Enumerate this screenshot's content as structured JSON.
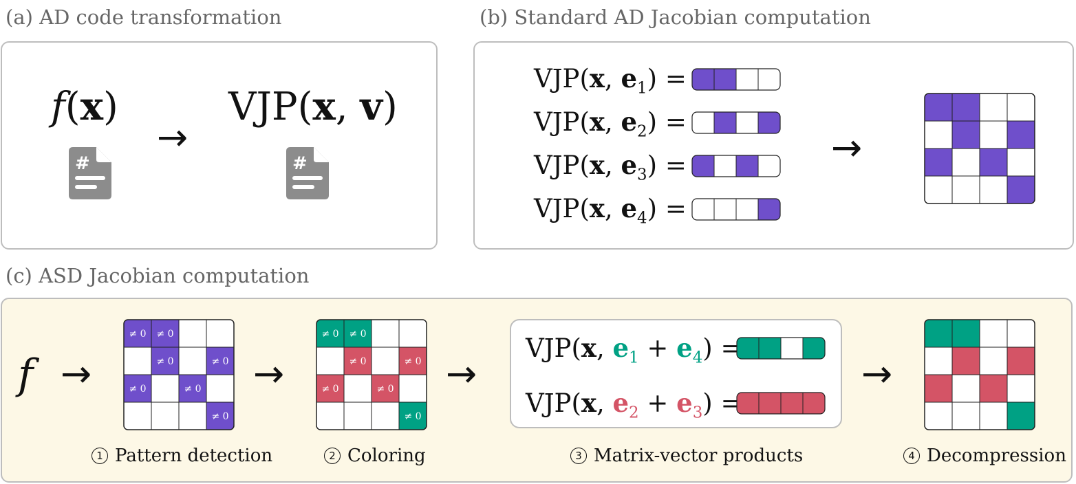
{
  "colors": {
    "purple": "#6f4fcb",
    "teal": "#00a184",
    "red": "#d45466",
    "panel_bg": "#fdf8e6",
    "border": "#bdbdbd",
    "doc_icon": "#8c8c8c"
  },
  "panel_a": {
    "title": "(a) AD code transformation",
    "f_of_x": "f(x)",
    "vjp_x_v": "VJP(x, v)",
    "icons": [
      "file-code-icon",
      "file-code-icon"
    ]
  },
  "panel_b": {
    "title": "(b) Standard AD Jacobian computation",
    "rows": [
      {
        "label": "VJP(x, e1) =",
        "sub": "1",
        "cells": [
          1,
          1,
          0,
          0
        ]
      },
      {
        "label": "VJP(x, e2) =",
        "sub": "2",
        "cells": [
          0,
          1,
          0,
          1
        ]
      },
      {
        "label": "VJP(x, e3) =",
        "sub": "3",
        "cells": [
          1,
          0,
          1,
          0
        ]
      },
      {
        "label": "VJP(x, e4) =",
        "sub": "4",
        "cells": [
          0,
          0,
          0,
          1
        ]
      }
    ],
    "jacobian": [
      [
        1,
        1,
        0,
        0
      ],
      [
        0,
        1,
        0,
        1
      ],
      [
        1,
        0,
        1,
        0
      ],
      [
        0,
        0,
        0,
        1
      ]
    ]
  },
  "panel_c": {
    "title": "(c) ASD Jacobian computation",
    "f": "f",
    "nonzero_label": "≠ 0",
    "pattern": [
      [
        1,
        1,
        0,
        0
      ],
      [
        0,
        1,
        0,
        1
      ],
      [
        1,
        0,
        1,
        0
      ],
      [
        0,
        0,
        0,
        1
      ]
    ],
    "coloring": [
      [
        "t",
        "t",
        "",
        ""
      ],
      [
        "",
        "r",
        "",
        "r"
      ],
      [
        "r",
        "",
        "r",
        ""
      ],
      [
        "",
        "",
        "",
        "t"
      ]
    ],
    "products": [
      {
        "label": "VJP(x, e1 + e4) =",
        "subs": [
          "1",
          "4"
        ],
        "color": "t",
        "cells": [
          "t",
          "t",
          "",
          "t"
        ]
      },
      {
        "label": "VJP(x, e2 + e3) =",
        "subs": [
          "2",
          "3"
        ],
        "color": "r",
        "cells": [
          "r",
          "r",
          "r",
          "r"
        ]
      }
    ],
    "decompressed": [
      [
        "t",
        "t",
        "",
        ""
      ],
      [
        "",
        "r",
        "",
        "r"
      ],
      [
        "r",
        "",
        "r",
        ""
      ],
      [
        "",
        "",
        "",
        "t"
      ]
    ],
    "steps": [
      {
        "num": "1",
        "label": "Pattern detection"
      },
      {
        "num": "2",
        "label": "Coloring"
      },
      {
        "num": "3",
        "label": "Matrix-vector products"
      },
      {
        "num": "4",
        "label": "Decompression"
      }
    ]
  }
}
